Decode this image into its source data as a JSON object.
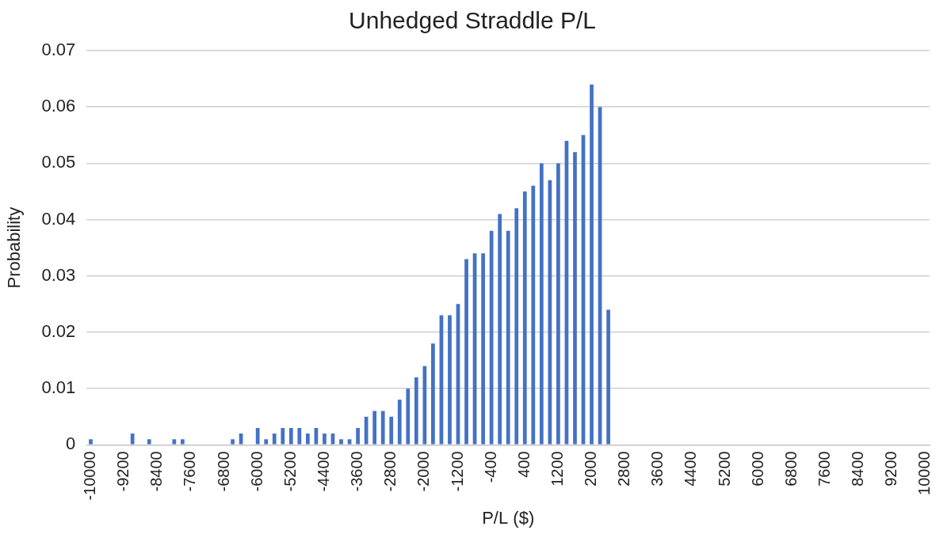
{
  "chart_data": {
    "type": "bar",
    "title": "Unhedged Straddle P/L",
    "x_label": "P/L ($)",
    "y_label": "Probability",
    "categories": [
      -10000,
      null,
      null,
      null,
      -9200,
      null,
      null,
      null,
      -8400,
      null,
      null,
      null,
      -7600,
      null,
      null,
      null,
      -6800,
      null,
      null,
      null,
      -6000,
      null,
      null,
      null,
      -5200,
      null,
      null,
      null,
      -4400,
      null,
      null,
      null,
      -3600,
      null,
      null,
      null,
      -2800,
      null,
      null,
      null,
      -2000,
      null,
      null,
      null,
      -1200,
      null,
      null,
      null,
      -400,
      null,
      null,
      null,
      400,
      null,
      null,
      null,
      1200,
      null,
      null,
      null,
      2000,
      null,
      null,
      null,
      2800,
      null,
      null,
      null,
      3600,
      null,
      null,
      null,
      4400,
      null,
      null,
      null,
      5200,
      null,
      null,
      null,
      6000,
      null,
      null,
      null,
      6800,
      null,
      null,
      null,
      7600,
      null,
      null,
      null,
      8400,
      null,
      null,
      null,
      9200,
      null,
      null,
      null,
      10000
    ],
    "values": [
      0.001,
      0,
      0,
      0,
      0,
      0.002,
      0,
      0.001,
      0,
      0,
      0.001,
      0.001,
      0,
      0,
      0,
      0,
      0,
      0.001,
      0.002,
      0,
      0.003,
      0.001,
      0.002,
      0.003,
      0.003,
      0.003,
      0.002,
      0.003,
      0.002,
      0.002,
      0.001,
      0.001,
      0.003,
      0.005,
      0.006,
      0.006,
      0.005,
      0.008,
      0.01,
      0.012,
      0.014,
      0.018,
      0.023,
      0.023,
      0.025,
      0.033,
      0.034,
      0.034,
      0.038,
      0.041,
      0.038,
      0.042,
      0.045,
      0.046,
      0.05,
      0.047,
      0.05,
      0.054,
      0.052,
      0.055,
      0.064,
      0.06,
      0.024,
      0,
      0,
      0,
      0,
      0,
      0,
      0,
      0,
      0,
      0,
      0,
      0,
      0,
      0,
      0,
      0,
      0,
      0,
      0,
      0,
      0,
      0,
      0,
      0,
      0,
      0,
      0,
      0,
      0,
      0,
      0,
      0,
      0,
      0,
      0,
      0,
      0,
      0
    ],
    "color": "#4472c4",
    "ylim": [
      0,
      0.07
    ],
    "yticks": [
      0,
      0.01,
      0.02,
      0.03,
      0.04,
      0.05,
      0.06,
      0.07
    ],
    "grid": true
  }
}
